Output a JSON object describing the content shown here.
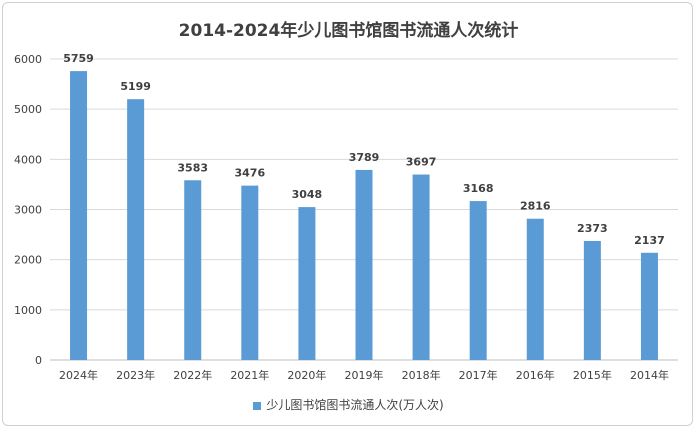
{
  "chart_data": {
    "type": "bar",
    "title": "2014-2024年少儿图书馆图书流通人次统计",
    "categories": [
      "2024年",
      "2023年",
      "2022年",
      "2021年",
      "2020年",
      "2019年",
      "2018年",
      "2017年",
      "2016年",
      "2015年",
      "2014年"
    ],
    "series": [
      {
        "name": "少儿图书馆图书流通人次(万人次)",
        "values": [
          5759,
          5199,
          3583,
          3476,
          3048,
          3789,
          3697,
          3168,
          2816,
          2373,
          2137
        ]
      }
    ],
    "ylim": [
      0,
      6000
    ],
    "yticks": [
      0,
      1000,
      2000,
      3000,
      4000,
      5000,
      6000
    ],
    "grid": true,
    "legend": "bottom",
    "color": "#5b9bd5"
  }
}
